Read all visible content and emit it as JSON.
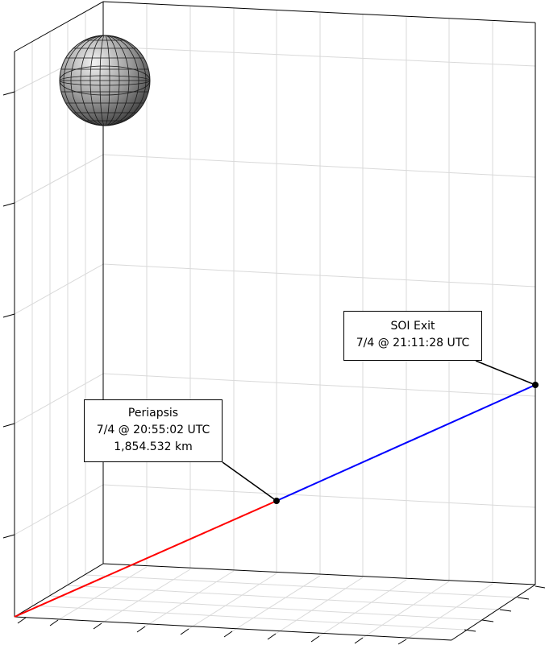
{
  "colors": {
    "inbound_leg": "#ff0000",
    "outbound_leg": "#0000ff",
    "grid": "#d9d9d9",
    "box_edge": "#000000",
    "background": "#ffffff",
    "body_fill": "#8c8c8c"
  },
  "annotations": {
    "periapsis": {
      "title": "Periapsis",
      "time": "7/4 @ 20:55:02 UTC",
      "altitude": "1,854.532 km"
    },
    "soi_exit": {
      "title": "SOI Exit",
      "time": "7/4 @ 21:11:28 UTC"
    }
  }
}
